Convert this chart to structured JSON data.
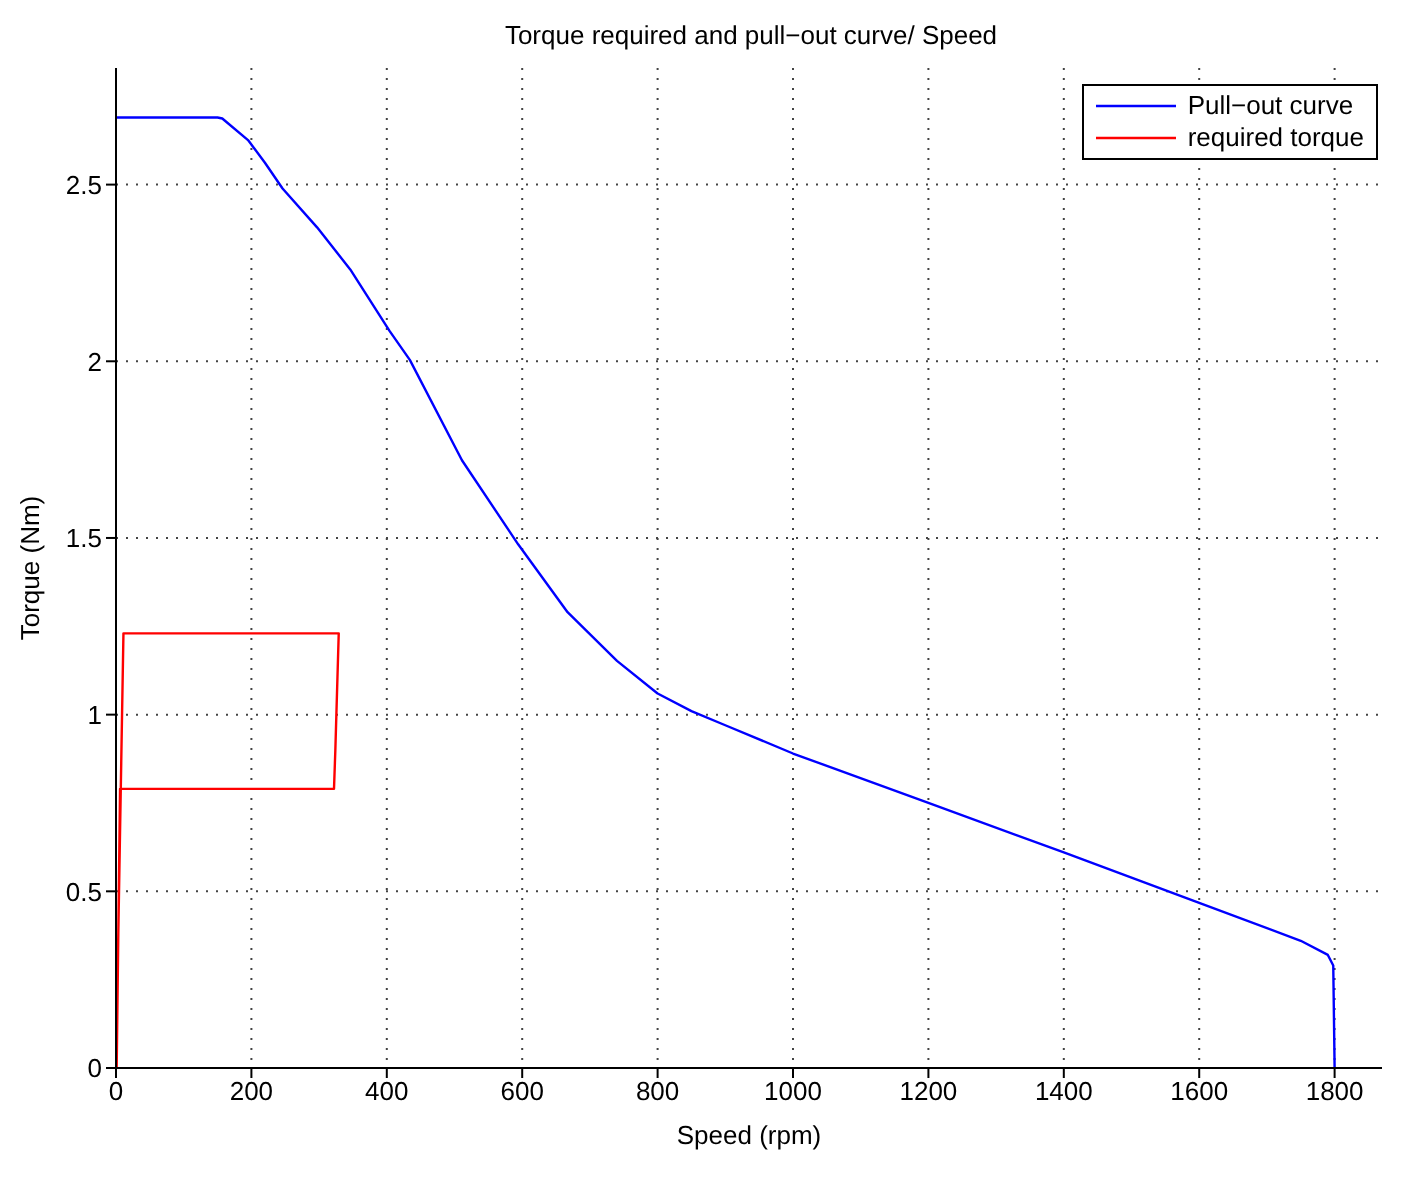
{
  "chart_data": {
    "type": "line",
    "title": "Torque required and pull−out curve/ Speed",
    "xlabel": "Speed (rpm)",
    "ylabel": "Torque (Nm)",
    "xlim": [
      0,
      1870
    ],
    "xticks": [
      0,
      200,
      400,
      600,
      800,
      1000,
      1200,
      1400,
      1600,
      1800
    ],
    "ylim": [
      0,
      2.83
    ],
    "yticks": [
      0,
      0.5,
      1,
      1.5,
      2,
      2.5
    ],
    "grid": true,
    "legend": "top right",
    "marker": "none",
    "line_style": "solid",
    "series": [
      {
        "name": "Pull−out curve",
        "color": "#0000ff",
        "x": [
          0,
          100,
          150,
          157,
          195,
          220,
          246,
          297,
          346,
          404,
          434,
          511,
          594,
          667,
          740,
          800,
          850,
          900,
          1000,
          1200,
          1400,
          1600,
          1750,
          1790,
          1798,
          1800
        ],
        "values": [
          2.69,
          2.69,
          2.69,
          2.687,
          2.626,
          2.562,
          2.489,
          2.379,
          2.26,
          2.086,
          2.004,
          1.72,
          1.482,
          1.29,
          1.152,
          1.06,
          1.01,
          0.97,
          0.89,
          0.75,
          0.61,
          0.467,
          0.36,
          0.32,
          0.29,
          0
        ]
      },
      {
        "name": "required torque",
        "color": "#ff0000",
        "x": [
          1,
          6,
          322,
          324,
          329,
          11,
          0
        ],
        "values": [
          0,
          0.79,
          0.79,
          0.9,
          1.23,
          1.23,
          0
        ]
      }
    ]
  }
}
